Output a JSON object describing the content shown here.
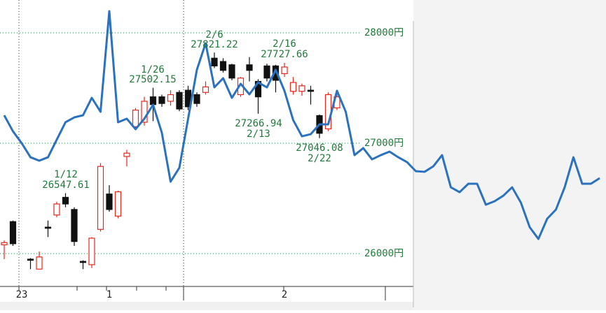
{
  "chart_data": {
    "type": "candlestick",
    "categories": [
      null,
      null,
      "23",
      null,
      null,
      null,
      null,
      null,
      null,
      null,
      null,
      null,
      "1",
      null,
      null,
      null,
      null,
      null,
      null,
      null,
      null,
      null,
      null,
      null,
      null,
      null,
      null,
      null,
      null,
      null,
      null,
      null,
      "2",
      null,
      null,
      null,
      null,
      null,
      null,
      null,
      null,
      null,
      null,
      null,
      null,
      null,
      null,
      null,
      null,
      null,
      null,
      null,
      null,
      null,
      null,
      null,
      null,
      null,
      null,
      null,
      null,
      null,
      null,
      null,
      null,
      null,
      null,
      null,
      null
    ],
    "open": [
      26080,
      26290,
      null,
      25950,
      25860,
      26240,
      26350,
      26510,
      26400,
      25930,
      25900,
      26220,
      26540,
      26340,
      26880,
      27150,
      27190,
      27420,
      27420,
      27380,
      27460,
      27480,
      27440,
      27460,
      27770,
      27740,
      27710,
      27440,
      27710,
      27560,
      27700,
      27700,
      27630,
      27470,
      27470,
      27480,
      27250,
      27130,
      27320,
      null,
      null,
      null,
      null,
      null,
      null,
      null,
      null,
      null,
      null,
      null,
      null,
      null,
      null,
      null,
      null,
      null,
      null,
      null,
      null,
      null,
      null,
      null,
      null,
      null,
      null,
      null,
      null,
      null,
      null
    ],
    "high": [
      26120,
      26300,
      null,
      25960,
      26020,
      26300,
      26470,
      26547.61,
      26420,
      25940,
      26150,
      26820,
      26620,
      26570,
      26940,
      27320,
      27420,
      27502.15,
      27440,
      27480,
      27480,
      27520,
      27460,
      27560,
      27821.22,
      27770,
      27720,
      27600,
      27780,
      27580,
      27720,
      27710,
      27727.66,
      27600,
      27540,
      27520,
      27260,
      27460,
      27440,
      null,
      null,
      null,
      null,
      null,
      null,
      null,
      null,
      null,
      null,
      null,
      null,
      null,
      null,
      null,
      null,
      null,
      null,
      null,
      null,
      null,
      null,
      null,
      null,
      null,
      null,
      null,
      null,
      null,
      null
    ],
    "low": [
      25950,
      26070,
      null,
      25860,
      25860,
      26150,
      26330,
      26420,
      26070,
      25860,
      25870,
      26200,
      26380,
      26320,
      26790,
      27120,
      27160,
      27200,
      27330,
      27340,
      27290,
      27300,
      27330,
      27440,
      27680,
      27640,
      27570,
      27420,
      27560,
      27266.94,
      27560,
      27460,
      27600,
      27440,
      27430,
      27350,
      27046.08,
      27110,
      27300,
      null,
      null,
      null,
      null,
      null,
      null,
      null,
      null,
      null,
      null,
      null,
      null,
      null,
      null,
      null,
      null,
      null,
      null,
      null,
      null,
      null,
      null,
      null,
      null,
      null,
      null,
      null,
      null,
      null,
      null
    ],
    "close": [
      26100,
      26090,
      null,
      25940,
      25970,
      26230,
      26450,
      26450,
      26110,
      25920,
      26140,
      26790,
      26400,
      26560,
      26910,
      27300,
      27380,
      27350,
      27360,
      27440,
      27310,
      27330,
      27360,
      27510,
      27700,
      27660,
      27590,
      27590,
      27660,
      27420,
      27590,
      27570,
      27690,
      27550,
      27520,
      27470,
      27090,
      27440,
      27420,
      null,
      null,
      null,
      null,
      null,
      null,
      null,
      null,
      null,
      null,
      null,
      null,
      null,
      null,
      null,
      null,
      null,
      null,
      null,
      null,
      null,
      null,
      null,
      null,
      null,
      null,
      null,
      null,
      null,
      null
    ],
    "up_color": "#e8271d",
    "down_color": "#111111",
    "line": {
      "color": "#2a72c0",
      "values": [
        27253,
        27108,
        27000,
        26873,
        26842,
        26873,
        27032,
        27190,
        27234,
        27253,
        27411,
        27285,
        28196,
        27190,
        27222,
        27127,
        27222,
        27348,
        27095,
        26652,
        26778,
        27222,
        27665,
        27905,
        27506,
        27589,
        27411,
        27538,
        27443,
        27551,
        27506,
        27665,
        27475,
        27209,
        27063,
        27082,
        27171,
        27171,
        27475,
        27285,
        26892,
        26956,
        26854,
        26892,
        26924,
        26873,
        26829,
        26747,
        26741,
        26791,
        26892,
        26601,
        26557,
        26633,
        26633,
        26443,
        26475,
        26525,
        26601,
        26462,
        26241,
        26133,
        26316,
        26399,
        26601,
        26873,
        26633,
        26633,
        26684
      ]
    },
    "ylim": [
      25703,
      28297
    ],
    "yticks": [
      {
        "value": 26000,
        "label": "26000円"
      },
      {
        "value": 27000,
        "label": "27000円"
      },
      {
        "value": 28000,
        "label": "28000円"
      }
    ],
    "grid": true,
    "annotations": [
      {
        "date": "1/12",
        "price": "26547.61"
      },
      {
        "date": "1/26",
        "price": "27502.15"
      },
      {
        "date": "2/6",
        "price": "27821.22"
      },
      {
        "date": "2/16",
        "price": "27727.66"
      },
      {
        "date": "2/13",
        "price": "27266.94"
      },
      {
        "date": "2/22",
        "price": "27046.08"
      }
    ]
  }
}
